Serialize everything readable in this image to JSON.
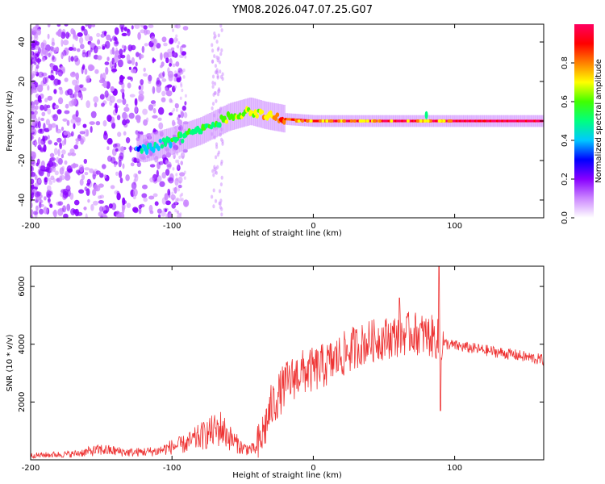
{
  "title": "YM08.2026.047.07.25.G07",
  "chart_data": [
    {
      "id": "spectrogram",
      "type": "heatmap",
      "xlabel": "Height of straight line (km)",
      "ylabel": "Frequency (Hz)",
      "xlim": [
        -200,
        163
      ],
      "ylim": [
        -49,
        49
      ],
      "xticks": [
        -200,
        -100,
        0,
        100
      ],
      "yticks": [
        -40,
        -20,
        0,
        20,
        40
      ],
      "colorbar": {
        "label": "Normalized spectral amplitude",
        "range": [
          0,
          1
        ],
        "ticks": [
          "0.0",
          "0.2",
          "0.4",
          "0.6",
          "0.8"
        ],
        "colors": [
          "#ffffff",
          "#cc88ff",
          "#8800ff",
          "#0000ff",
          "#00c8ff",
          "#00ff80",
          "#40ff00",
          "#ffff00",
          "#ff8000",
          "#ff0000",
          "#ff0060"
        ]
      },
      "ridge": {
        "x": [
          -200,
          -160,
          -120,
          -110,
          -100,
          -80,
          -60,
          -45,
          -35,
          -20,
          0,
          50,
          100,
          163
        ],
        "y": [
          2,
          -8,
          -14,
          -12,
          -10,
          -5,
          2,
          5,
          3,
          1,
          0,
          0,
          0,
          0
        ],
        "amplitude": [
          0.25,
          0.35,
          0.4,
          0.45,
          0.5,
          0.55,
          0.6,
          0.65,
          0.7,
          0.85,
          0.95,
          0.97,
          0.98,
          0.98
        ]
      }
    },
    {
      "id": "snr",
      "type": "line",
      "xlabel": "Height of straight line (km)",
      "ylabel": "SNR (10 * v/v)",
      "xlim": [
        -200,
        163
      ],
      "ylim": [
        0,
        6700
      ],
      "xticks": [
        -200,
        -100,
        0,
        100
      ],
      "yticks": [
        2000,
        4000,
        6000
      ],
      "color": "#ee3333",
      "series": [
        {
          "name": "SNR",
          "x": [
            -200,
            -170,
            -150,
            -130,
            -110,
            -100,
            -90,
            -80,
            -70,
            -65,
            -60,
            -50,
            -40,
            -35,
            -30,
            -25,
            -20,
            -15,
            -10,
            0,
            10,
            20,
            30,
            40,
            50,
            60,
            70,
            80,
            85,
            88,
            90,
            95,
            100,
            120,
            140,
            163
          ],
          "y": [
            150,
            200,
            350,
            250,
            300,
            450,
            550,
            800,
            1000,
            1100,
            800,
            400,
            350,
            1000,
            1800,
            2200,
            2600,
            2800,
            3000,
            3100,
            3300,
            3600,
            3900,
            4100,
            4200,
            4300,
            4400,
            4300,
            4250,
            4150,
            4050,
            4000,
            3950,
            3800,
            3650,
            3450
          ]
        }
      ]
    }
  ]
}
